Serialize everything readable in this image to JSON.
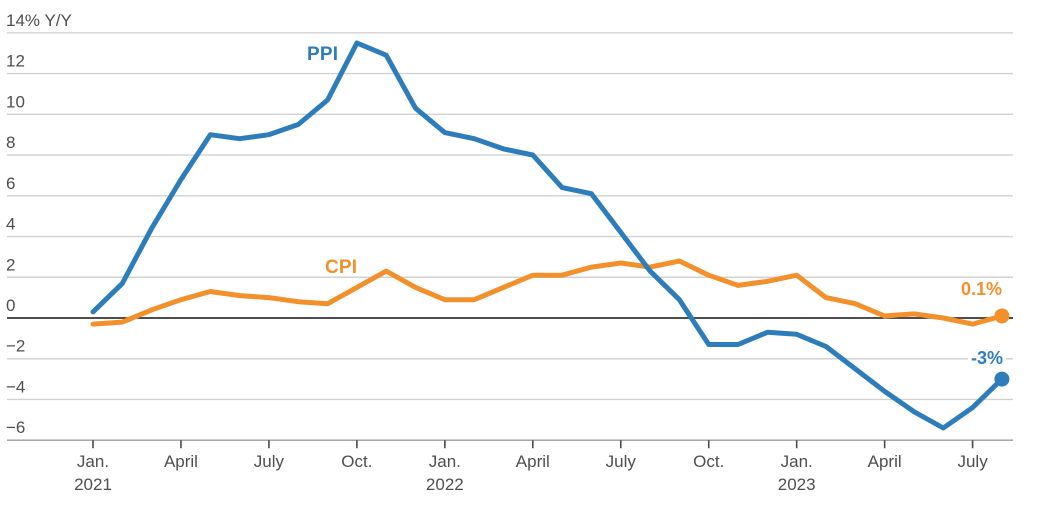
{
  "chart_data": {
    "type": "line",
    "title": "",
    "unit_label": "14% Y/Y",
    "x_frequency": "monthly",
    "x_range": [
      "Jan. 2021",
      "Aug. 2023"
    ],
    "ylim": [
      -6,
      14
    ],
    "grid": "horizontal",
    "y_ticks": [
      14,
      12,
      10,
      8,
      6,
      4,
      2,
      0,
      -2,
      -4,
      -6
    ],
    "y_tick_labels": [
      "14% Y/Y",
      "12",
      "10",
      "8",
      "6",
      "4",
      "2",
      "0",
      "−2",
      "−4",
      "−6"
    ],
    "x_ticks": [
      {
        "month_index": 0,
        "label": "Jan.",
        "year": "2021"
      },
      {
        "month_index": 3,
        "label": "April"
      },
      {
        "month_index": 6,
        "label": "July"
      },
      {
        "month_index": 9,
        "label": "Oct."
      },
      {
        "month_index": 12,
        "label": "Jan.",
        "year": "2022"
      },
      {
        "month_index": 15,
        "label": "April"
      },
      {
        "month_index": 18,
        "label": "July"
      },
      {
        "month_index": 21,
        "label": "Oct."
      },
      {
        "month_index": 24,
        "label": "Jan.",
        "year": "2023"
      },
      {
        "month_index": 27,
        "label": "April"
      },
      {
        "month_index": 30,
        "label": "July"
      }
    ],
    "series": [
      {
        "name": "CPI",
        "label_text": "CPI",
        "color": "#f2912b",
        "end_label": "0.1%",
        "values": [
          -0.3,
          -0.2,
          0.4,
          0.9,
          1.3,
          1.1,
          1.0,
          0.8,
          0.7,
          1.5,
          2.3,
          1.5,
          0.9,
          0.9,
          1.5,
          2.1,
          2.1,
          2.5,
          2.7,
          2.5,
          2.8,
          2.1,
          1.6,
          1.8,
          2.1,
          1.0,
          0.7,
          0.1,
          0.2,
          0.0,
          -0.3,
          0.1
        ]
      },
      {
        "name": "PPI",
        "label_text": "PPI",
        "color": "#2e7dbb",
        "end_label": "-3%",
        "values": [
          0.3,
          1.7,
          4.4,
          6.8,
          9.0,
          8.8,
          9.0,
          9.5,
          10.7,
          13.5,
          12.9,
          10.3,
          9.1,
          8.8,
          8.3,
          8.0,
          6.4,
          6.1,
          4.2,
          2.3,
          0.9,
          -1.3,
          -1.3,
          -0.7,
          -0.8,
          -1.4,
          -2.5,
          -3.6,
          -4.6,
          -5.4,
          -4.4,
          -3.0
        ]
      }
    ],
    "legend_position": "inline-labels"
  },
  "colors": {
    "grid": "#d2d2d2",
    "zero_line": "#141414",
    "axis_line": "#9c9c9c",
    "tick_mark": "#4a4a4a",
    "tick_text": "#4f4f4f"
  }
}
